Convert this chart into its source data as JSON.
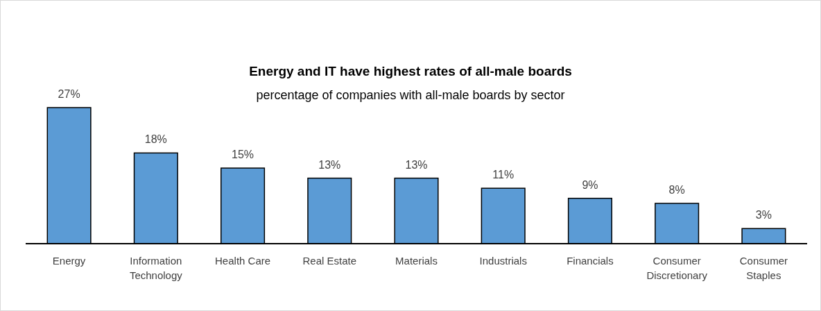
{
  "chart_data": {
    "type": "bar",
    "title": "Energy and IT have highest rates of all-male boards",
    "subtitle": "percentage of companies with all-male boards by sector",
    "categories": [
      "Energy",
      "Information Technology",
      "Health Care",
      "Real Estate",
      "Materials",
      "Industrials",
      "Financials",
      "Consumer Discretionary",
      "Consumer Staples"
    ],
    "values": [
      27,
      18,
      15,
      13,
      13,
      11,
      9,
      8,
      3
    ],
    "value_labels": [
      "27%",
      "18%",
      "15%",
      "13%",
      "13%",
      "11%",
      "9%",
      "8%",
      "3%"
    ],
    "color": "#5b9bd5"
  }
}
